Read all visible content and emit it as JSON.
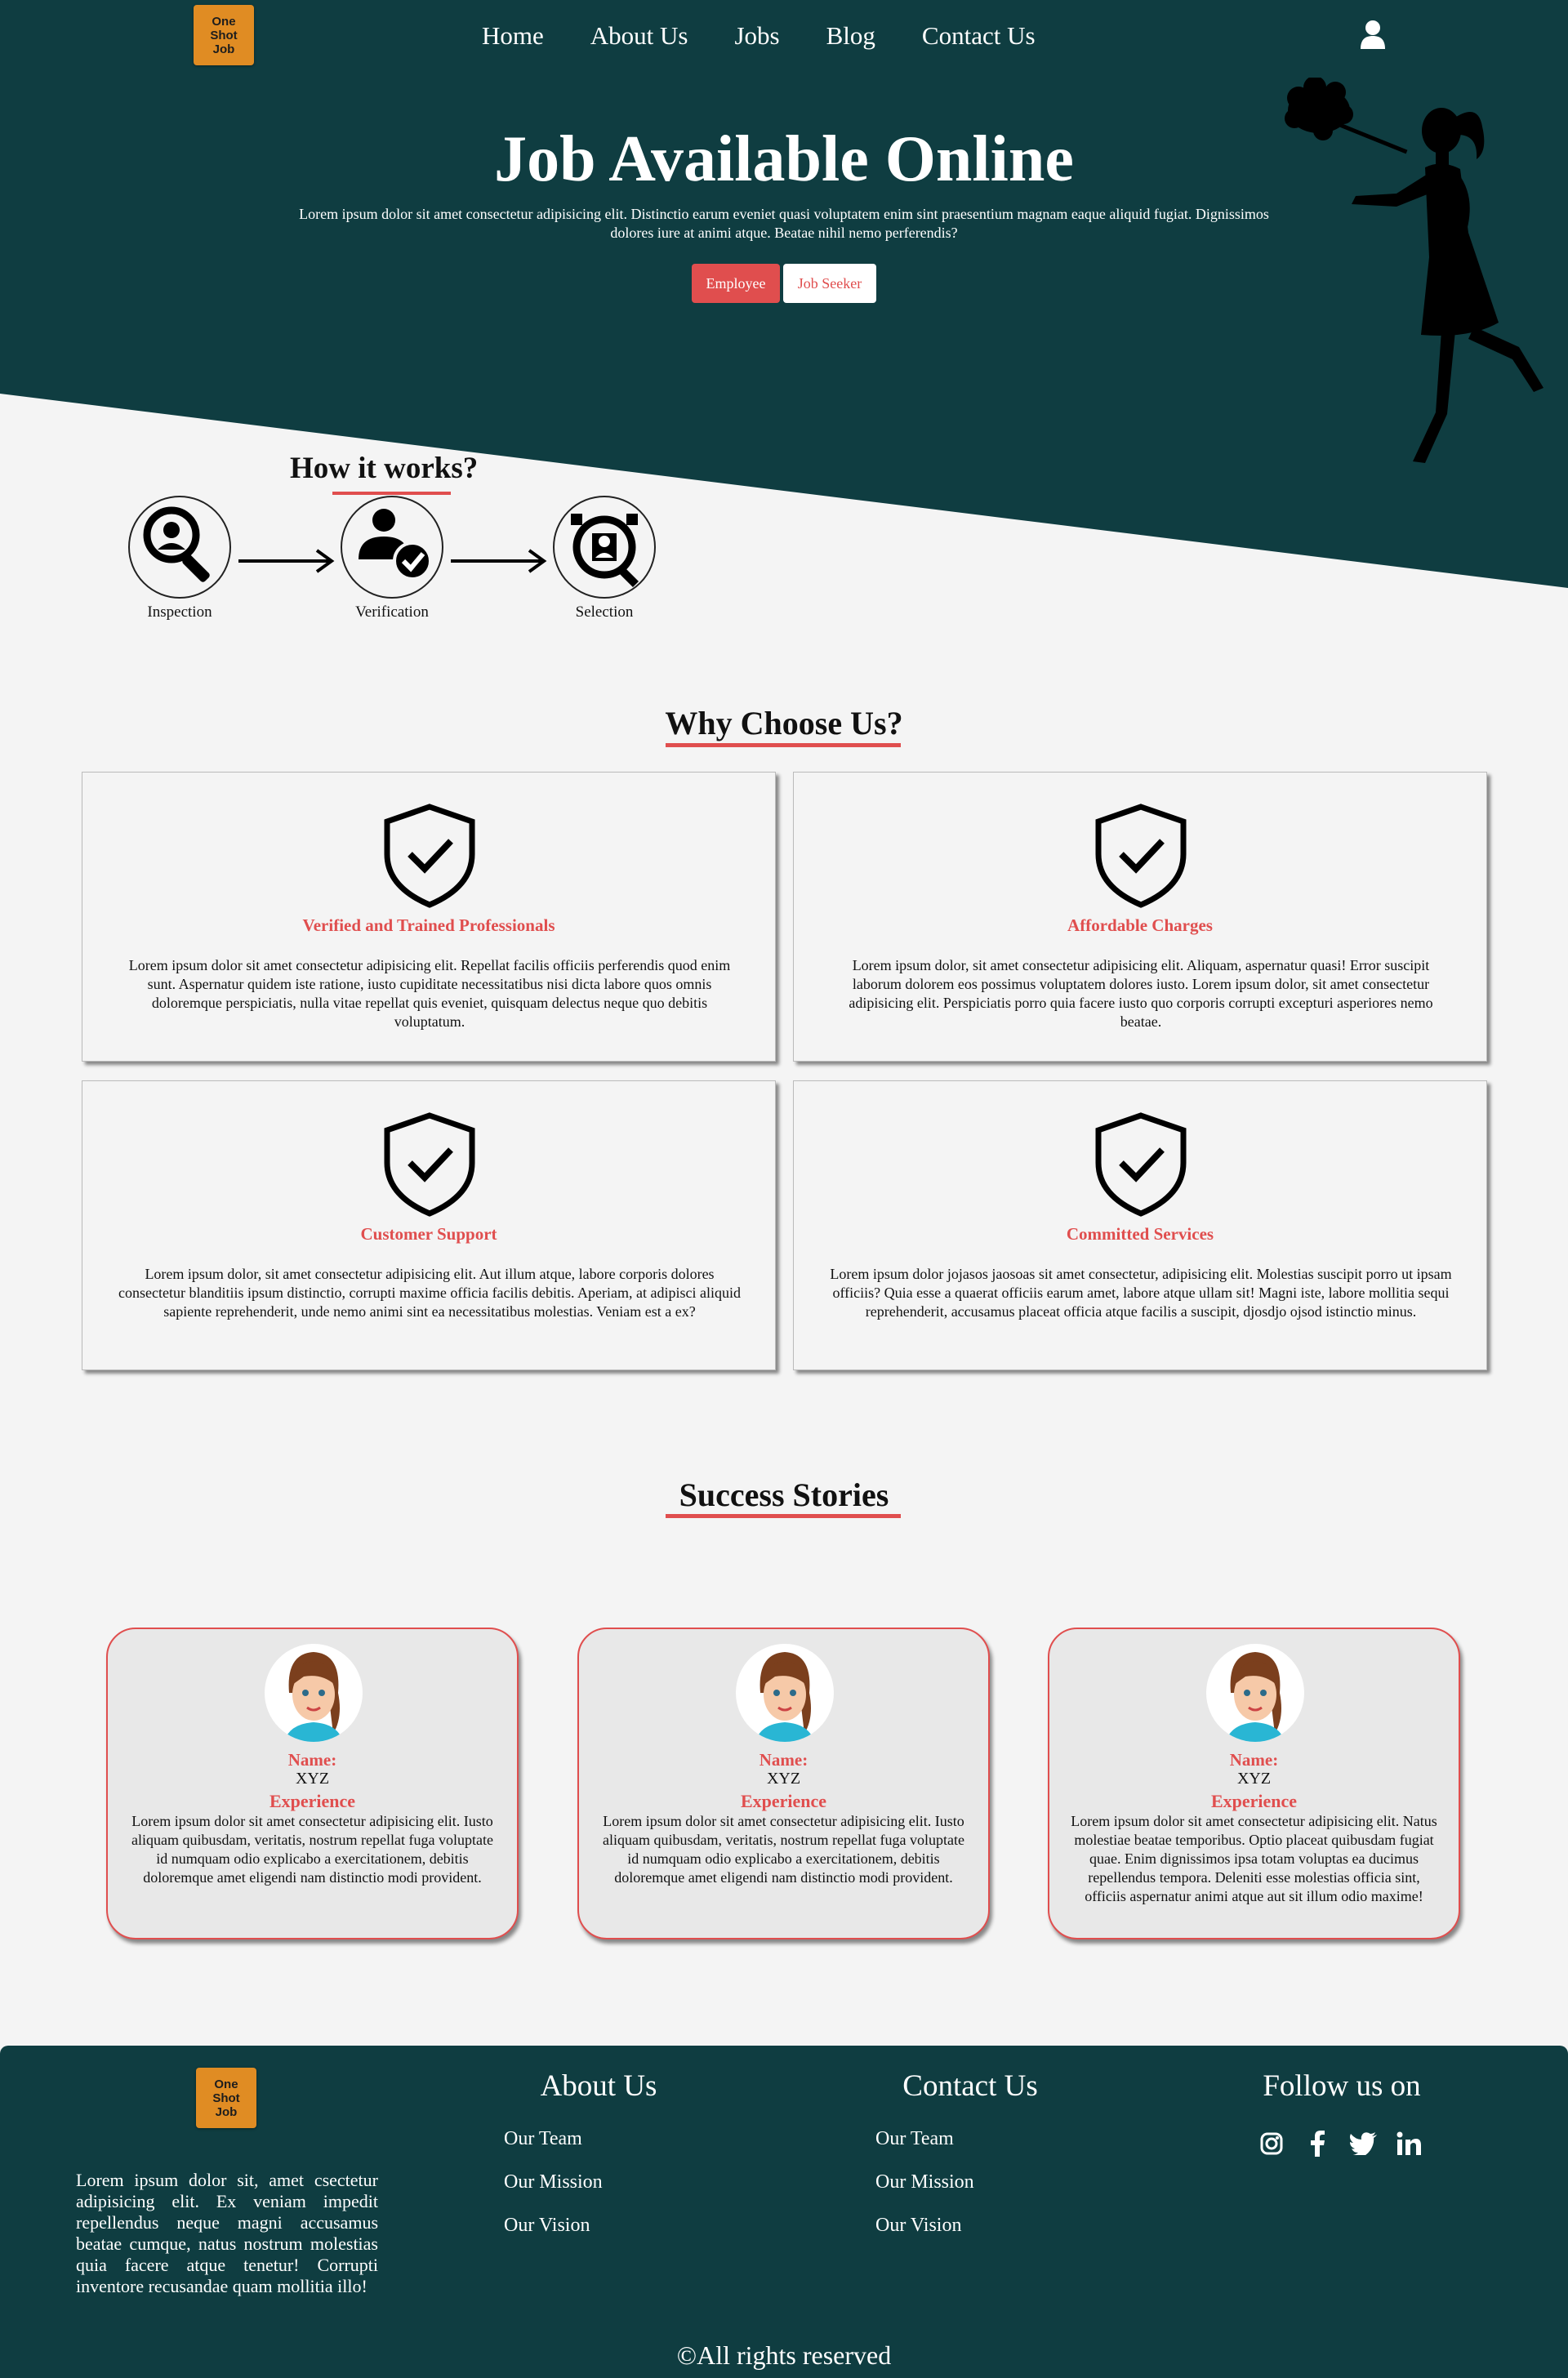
{
  "brand": {
    "logo_lines": [
      "One",
      "Shot",
      "Job"
    ]
  },
  "nav": {
    "items": [
      "Home",
      "About Us",
      "Jobs",
      "Blog",
      "Contact Us"
    ]
  },
  "hero": {
    "title": "Job Available Online",
    "text": "Lorem ipsum dolor sit amet consectetur adipisicing elit. Distinctio earum eveniet quasi voluptatem enim sint praesentium magnam eaque aliquid fugiat. Dignissimos dolores iure at animi atque. Beatae nihil nemo perferendis?",
    "btn_employee": "Employee",
    "btn_seeker": "Job Seeker"
  },
  "how": {
    "title": "How it works?",
    "steps": [
      "Inspection",
      "Verification",
      "Selection"
    ]
  },
  "why": {
    "title": "Why Choose Us?",
    "cards": [
      {
        "title": "Verified and Trained Professionals",
        "text": "Lorem ipsum dolor sit amet consectetur adipisicing elit. Repellat facilis officiis perferendis quod enim sunt. Aspernatur quidem iste ratione, iusto cupiditate necessitatibus nisi dicta labore quos omnis doloremque perspiciatis, nulla vitae repellat quis eveniet, quisquam delectus neque quo debitis voluptatum."
      },
      {
        "title": "Affordable Charges",
        "text": "Lorem ipsum dolor, sit amet consectetur adipisicing elit. Aliquam, aspernatur quasi! Error suscipit laborum dolorem eos possimus voluptatem dolores iusto. Lorem ipsum dolor, sit amet consectetur adipisicing elit. Perspiciatis porro quia facere iusto quo corporis corrupti excepturi asperiores nemo beatae."
      },
      {
        "title": "Customer Support",
        "text": "Lorem ipsum dolor, sit amet consectetur adipisicing elit. Aut illum atque, labore corporis dolores consectetur blanditiis ipsum distinctio, corrupti maxime officia facilis debitis. Aperiam, at adipisci aliquid sapiente reprehenderit, unde nemo animi sint ea necessitatibus molestias. Veniam est a ex?"
      },
      {
        "title": "Committed Services",
        "text": "Lorem ipsum dolor jojasos jaosoas sit amet consectetur, adipisicing elit. Molestias suscipit porro ut ipsam officiis? Quia esse a quaerat officiis earum amet, labore atque ullam sit! Magni iste, labore mollitia sequi reprehenderit, accusamus placeat officia atque facilis a suscipit, djosdjo ojsod istinctio minus."
      }
    ]
  },
  "success": {
    "title": "Success Stories",
    "stories": [
      {
        "name_label": "Name:",
        "name": "XYZ",
        "exp_label": "Experience",
        "text": "Lorem ipsum dolor sit amet consectetur adipisicing elit. Iusto aliquam quibusdam, veritatis, nostrum repellat fuga voluptate id numquam odio explicabo a exercitationem, debitis doloremque amet eligendi nam distinctio modi provident."
      },
      {
        "name_label": "Name:",
        "name": "XYZ",
        "exp_label": "Experience",
        "text": "Lorem ipsum dolor sit amet consectetur adipisicing elit. Iusto aliquam quibusdam, veritatis, nostrum repellat fuga voluptate id numquam odio explicabo a exercitationem, debitis doloremque amet eligendi nam distinctio modi provident."
      },
      {
        "name_label": "Name:",
        "name": "XYZ",
        "exp_label": "Experience",
        "text": "Lorem ipsum dolor sit amet consectetur adipisicing elit. Natus molestiae beatae temporibus. Optio placeat quibusdam fugiat quae. Enim dignissimos ipsa totam voluptas ea ducimus repellendus tempora. Deleniti esse molestias officia sint, officiis aspernatur animi atque aut sit illum odio maxime!"
      }
    ]
  },
  "footer": {
    "text": "Lorem ipsum dolor sit, amet csectetur adipisicing elit. Ex veniam impedit repellendus neque magni accusamus beatae cumque, natus nostrum molestias quia facere atque tenetur! Corrupti inventore recusandae quam mollitia illo!",
    "about_title": "About Us",
    "about_links": [
      "Our Team",
      "Our Mission",
      "Our Vision"
    ],
    "contact_title": "Contact Us",
    "contact_links": [
      "Our Team",
      "Our Mission",
      "Our Vision"
    ],
    "follow_title": "Follow us on",
    "social_icons": [
      "instagram-icon",
      "facebook-icon",
      "twitter-icon",
      "linkedin-icon"
    ],
    "copyright": "©All rights reserved"
  },
  "colors": {
    "dark": "#0f3d41",
    "accent": "#e04e4e",
    "logo": "#e08c23",
    "bg": "#f4f4f4"
  }
}
